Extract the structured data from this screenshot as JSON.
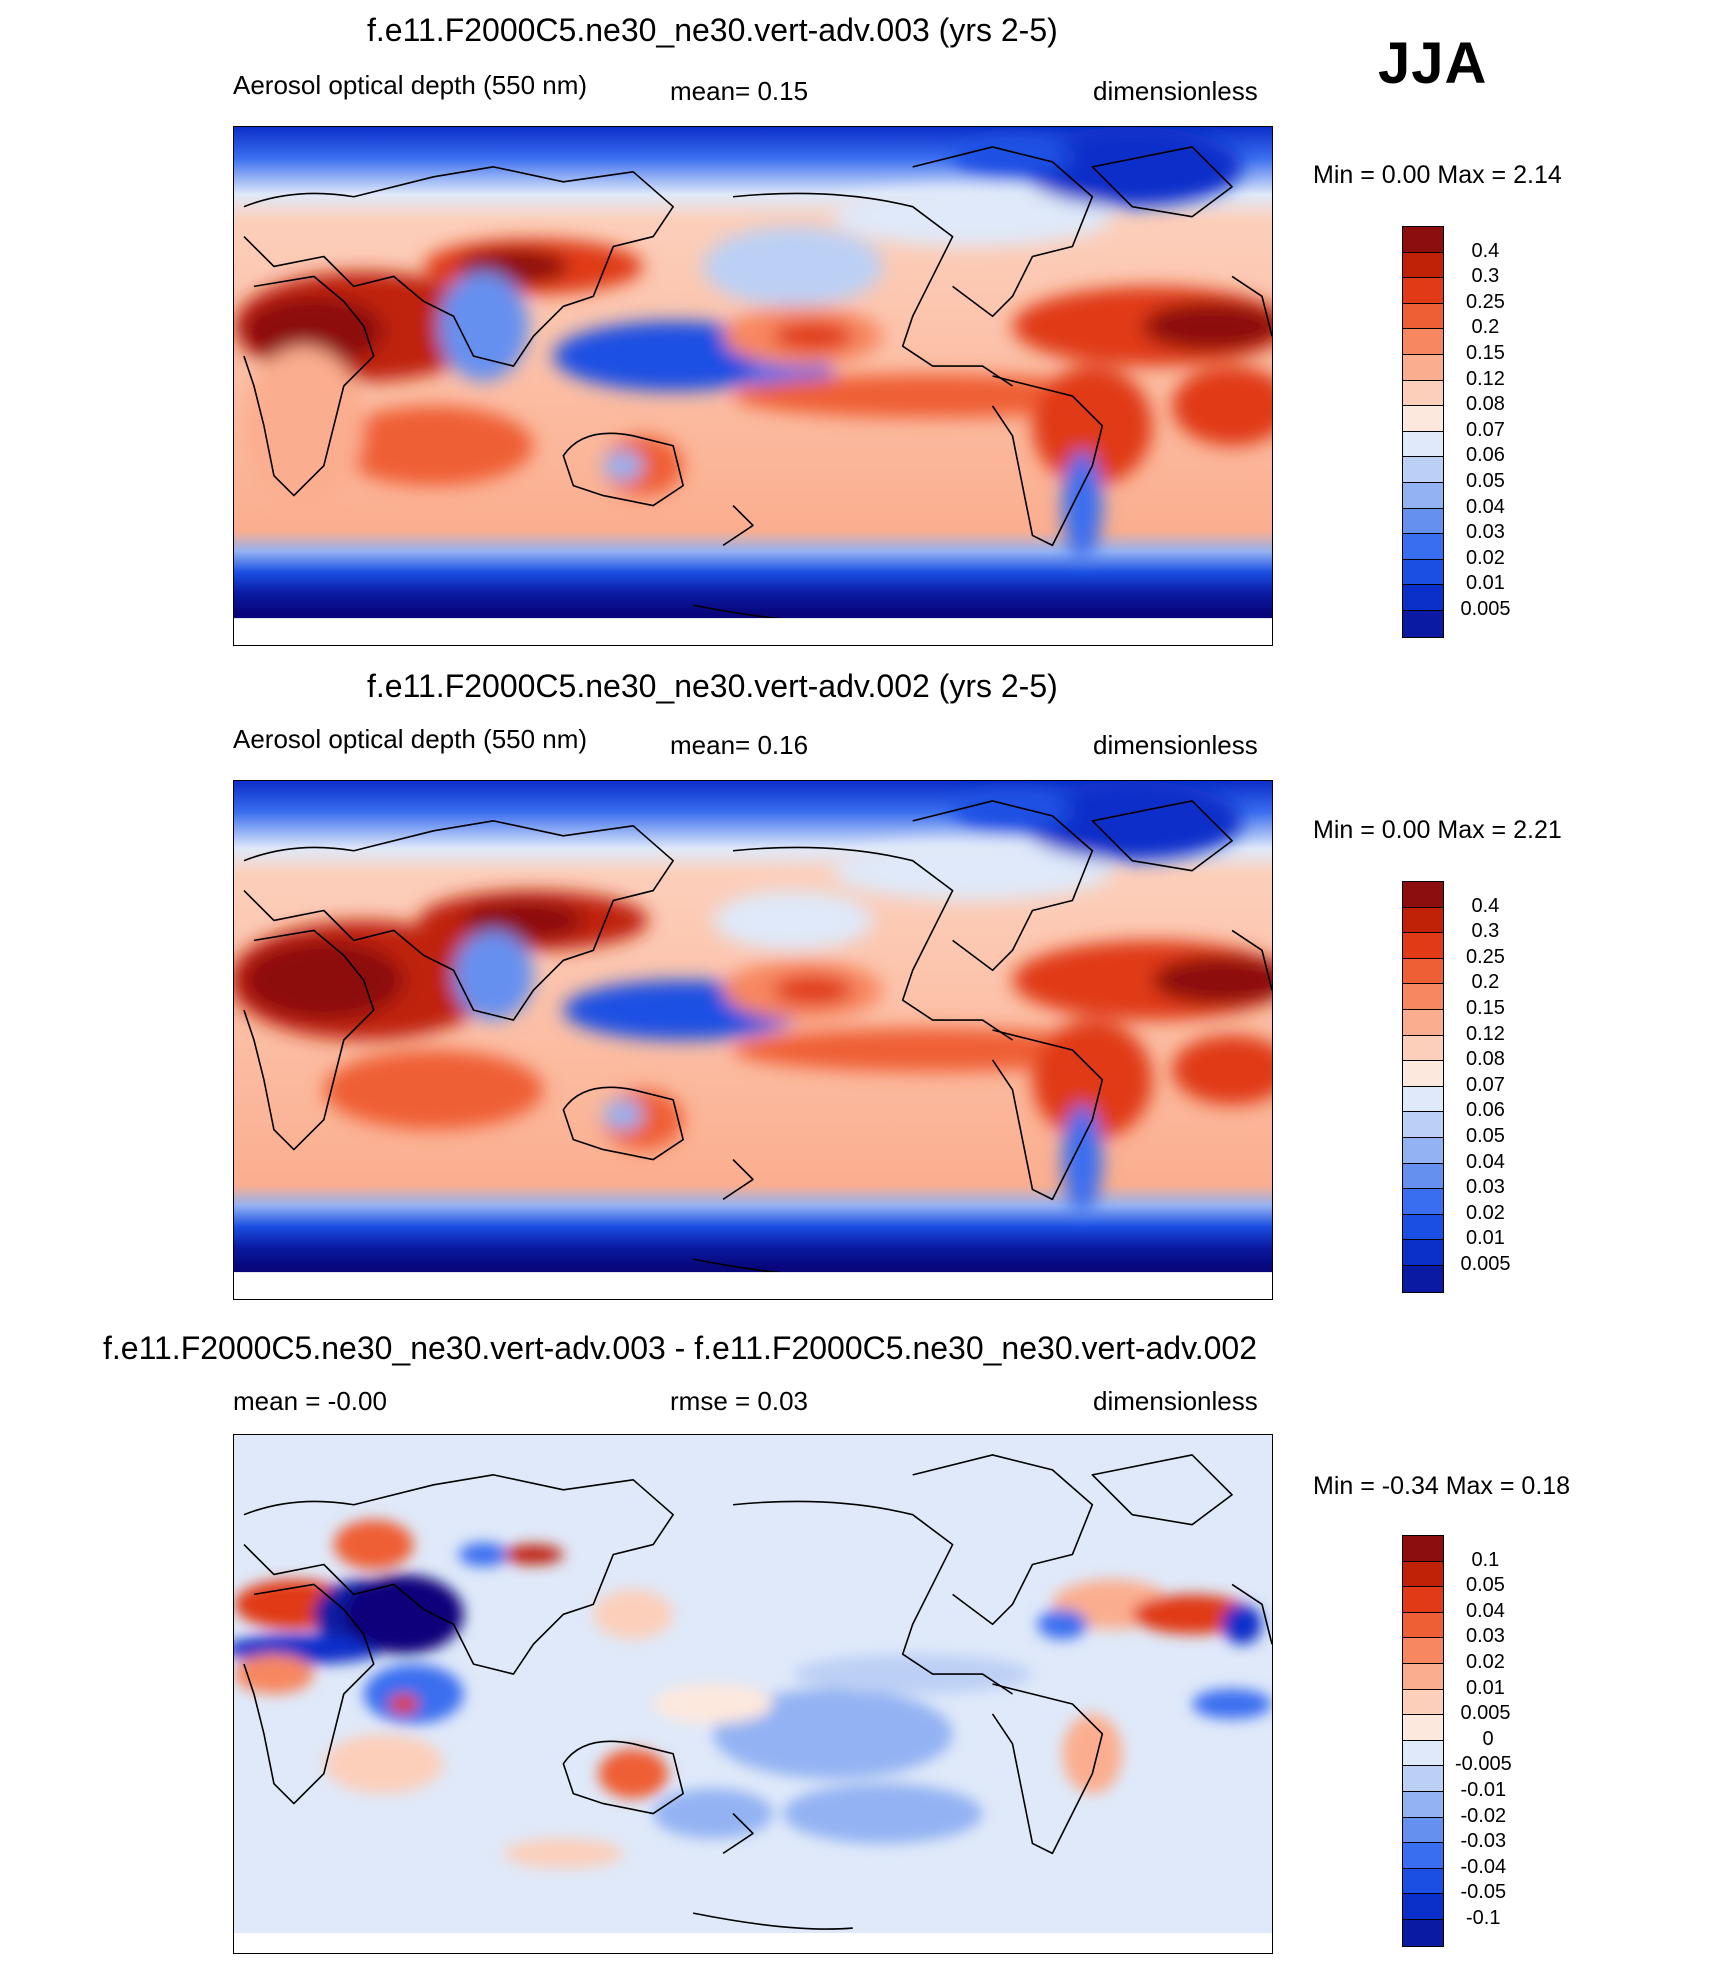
{
  "season": "JJA",
  "palette_pos": [
    "#08067a",
    "#0a1aa3",
    "#0b2fc9",
    "#1b4fe3",
    "#3a6ef0",
    "#6690f0",
    "#93b2f3",
    "#bcd0f5",
    "#dfe9f9",
    "#fde8dd",
    "#fccfbb",
    "#fbae8f",
    "#f78760",
    "#ef5f35",
    "#e03a16",
    "#bf2207",
    "#8d0e0e"
  ],
  "panels": [
    {
      "title": "f.e11.F2000C5.ne30_ne30.vert-adv.003 (yrs 2-5)",
      "left_text": "Aerosol optical depth (550 nm)",
      "mid_text": "mean=   0.15",
      "right_text": "dimensionless",
      "minmax": "Min =    0.00 Max =    2.14",
      "colorbar_labels": [
        "0.4",
        "0.3",
        "0.25",
        "0.2",
        "0.15",
        "0.12",
        "0.08",
        "0.07",
        "0.06",
        "0.05",
        "0.04",
        "0.03",
        "0.02",
        "0.01",
        "0.005"
      ]
    },
    {
      "title": "f.e11.F2000C5.ne30_ne30.vert-adv.002 (yrs 2-5)",
      "left_text": "Aerosol optical depth (550 nm)",
      "mid_text": "mean=   0.16",
      "right_text": "dimensionless",
      "minmax": "Min =    0.00 Max =    2.21",
      "colorbar_labels": [
        "0.4",
        "0.3",
        "0.25",
        "0.2",
        "0.15",
        "0.12",
        "0.08",
        "0.07",
        "0.06",
        "0.05",
        "0.04",
        "0.03",
        "0.02",
        "0.01",
        "0.005"
      ]
    },
    {
      "title": "f.e11.F2000C5.ne30_ne30.vert-adv.003 - f.e11.F2000C5.ne30_ne30.vert-adv.002",
      "left_text": "mean =  -0.00",
      "mid_text": "rmse =   0.03",
      "right_text": "dimensionless",
      "minmax": "Min =  -0.34 Max =    0.18",
      "colorbar_labels": [
        "0.1",
        "0.05",
        "0.04",
        "0.03",
        "0.02",
        "0.01",
        "0.005",
        "0",
        "-0.005",
        "-0.01",
        "-0.02",
        "-0.03",
        "-0.04",
        "-0.05",
        "-0.1"
      ]
    }
  ]
}
